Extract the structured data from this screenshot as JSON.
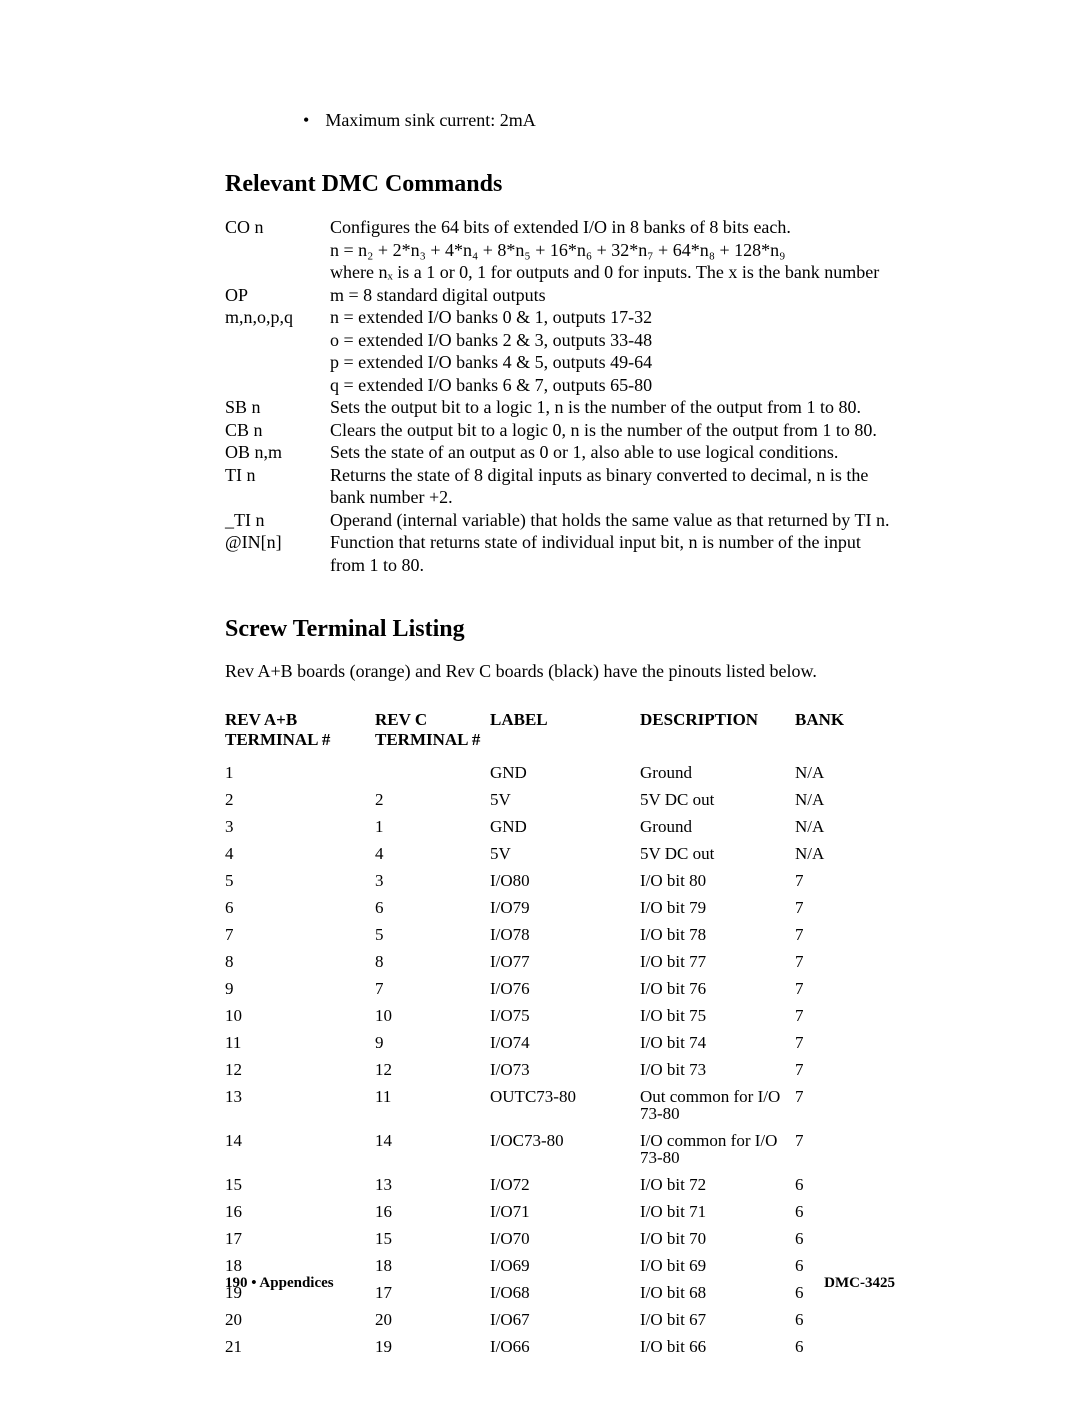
{
  "bullet": {
    "text": "Maximum sink current: 2mA"
  },
  "sections": {
    "cmds_title": "Relevant DMC Commands",
    "term_title": "Screw Terminal Listing",
    "term_intro": "Rev A+B boards (orange) and Rev C boards (black) have the pinouts listed below."
  },
  "commands": [
    {
      "name": "CO n",
      "lines": [
        "Configures the 64 bits of extended I/O in 8 banks of 8 bits each.",
        "n = n₂ + 2*n₃ + 4*n₄ + 8*n₅ + 16*n₆ + 32*n₇ + 64*n₈ + 128*n₉",
        "where nₓ is a 1 or 0, 1 for outputs and 0 for inputs.  The x is the bank number"
      ]
    },
    {
      "name": "OP",
      "lines": [
        "m = 8 standard digital outputs"
      ]
    },
    {
      "name": "m,n,o,p,q",
      "lines": [
        "n = extended I/O banks 0 & 1, outputs 17-32",
        "o = extended I/O banks 2 & 3, outputs 33-48",
        "p =  extended I/O banks 4 & 5, outputs 49-64",
        "q = extended I/O banks 6 & 7, outputs 65-80"
      ]
    },
    {
      "name": "SB n",
      "lines": [
        "Sets the output bit to a logic 1, n is the number of the output from 1 to 80."
      ]
    },
    {
      "name": "CB n",
      "lines": [
        "Clears the output bit to a logic 0, n is the number of the output from 1 to 80."
      ]
    },
    {
      "name": "OB n,m",
      "lines": [
        "Sets the state of an output as 0 or 1, also able to use logical conditions."
      ]
    },
    {
      "name": "TI n",
      "lines": [
        "Returns the state of 8 digital inputs as binary converted to decimal, n is the bank number +2."
      ]
    },
    {
      "name": "_TI n",
      "lines": [
        "Operand (internal variable) that holds the same value as that returned by TI n."
      ]
    },
    {
      "name": "@IN[n]",
      "lines": [
        "Function that returns state of individual input bit, n is number of the input from 1 to 80."
      ]
    }
  ],
  "term_headers": {
    "a": "REV A+B TERMINAL #",
    "b": "REV C TERMINAL #",
    "c": "LABEL",
    "d": "DESCRIPTION",
    "e": "BANK"
  },
  "term_rows": [
    {
      "a": "1",
      "b": "",
      "c": "GND",
      "d": "Ground",
      "e": "N/A"
    },
    {
      "a": "2",
      "b": "2",
      "c": "5V",
      "d": "5V DC out",
      "e": "N/A"
    },
    {
      "a": "3",
      "b": "1",
      "c": "GND",
      "d": "Ground",
      "e": "N/A"
    },
    {
      "a": "4",
      "b": "4",
      "c": "5V",
      "d": "5V DC out",
      "e": "N/A"
    },
    {
      "a": "5",
      "b": "3",
      "c": "I/O80",
      "d": "I/O bit 80",
      "e": "7"
    },
    {
      "a": "6",
      "b": "6",
      "c": "I/O79",
      "d": "I/O bit 79",
      "e": "7"
    },
    {
      "a": "7",
      "b": "5",
      "c": "I/O78",
      "d": "I/O bit 78",
      "e": "7"
    },
    {
      "a": "8",
      "b": "8",
      "c": "I/O77",
      "d": "I/O bit 77",
      "e": "7"
    },
    {
      "a": "9",
      "b": "7",
      "c": "I/O76",
      "d": "I/O bit 76",
      "e": "7"
    },
    {
      "a": "10",
      "b": "10",
      "c": "I/O75",
      "d": "I/O bit 75",
      "e": "7"
    },
    {
      "a": "11",
      "b": "9",
      "c": "I/O74",
      "d": "I/O bit 74",
      "e": "7"
    },
    {
      "a": "12",
      "b": "12",
      "c": "I/O73",
      "d": "I/O bit 73",
      "e": "7"
    },
    {
      "a": "13",
      "b": "11",
      "c": "OUTC73-80",
      "d": "Out common for I/O 73-80",
      "e": "7"
    },
    {
      "a": "14",
      "b": "14",
      "c": "I/OC73-80",
      "d": "I/O common for I/O 73-80",
      "e": "7"
    },
    {
      "a": "15",
      "b": "13",
      "c": "I/O72",
      "d": "I/O bit 72",
      "e": "6"
    },
    {
      "a": "16",
      "b": "16",
      "c": "I/O71",
      "d": "I/O bit 71",
      "e": "6"
    },
    {
      "a": "17",
      "b": "15",
      "c": "I/O70",
      "d": "I/O bit 70",
      "e": "6"
    },
    {
      "a": "18",
      "b": "18",
      "c": "I/O69",
      "d": "I/O bit 69",
      "e": "6"
    },
    {
      "a": "19",
      "b": "17",
      "c": "I/O68",
      "d": "I/O bit 68",
      "e": "6"
    },
    {
      "a": "20",
      "b": "20",
      "c": "I/O67",
      "d": "I/O bit 67",
      "e": "6"
    },
    {
      "a": "21",
      "b": "19",
      "c": "I/O66",
      "d": "I/O bit 66",
      "e": "6"
    }
  ],
  "footer": {
    "left": "190 • Appendices",
    "right": "DMC-3425"
  },
  "colors": {
    "text": "#000000",
    "background": "#ffffff"
  },
  "fonts": {
    "body_family": "Times New Roman",
    "body_size_pt": 13,
    "h2_size_pt": 18,
    "footer_size_pt": 11
  }
}
